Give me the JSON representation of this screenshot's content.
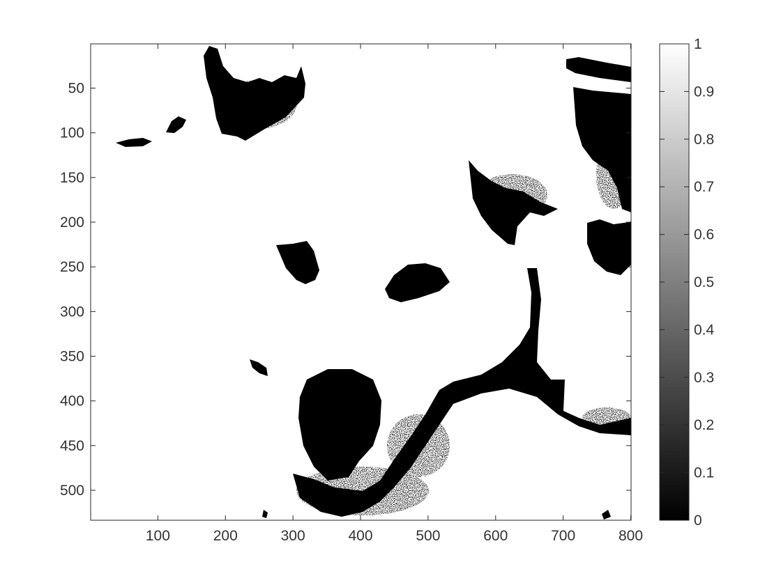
{
  "figure": {
    "background": "#ffffff",
    "axes_color": "#262626",
    "x_ticks": [
      {
        "value": 100,
        "label": "100"
      },
      {
        "value": 200,
        "label": "200"
      },
      {
        "value": 300,
        "label": "300"
      },
      {
        "value": 400,
        "label": "400"
      },
      {
        "value": 500,
        "label": "500"
      },
      {
        "value": 600,
        "label": "600"
      },
      {
        "value": 700,
        "label": "700"
      },
      {
        "value": 800,
        "label": "800"
      }
    ],
    "y_ticks": [
      {
        "value": 50,
        "label": "50"
      },
      {
        "value": 100,
        "label": "100"
      },
      {
        "value": 150,
        "label": "150"
      },
      {
        "value": 200,
        "label": "200"
      },
      {
        "value": 250,
        "label": "250"
      },
      {
        "value": 300,
        "label": "300"
      },
      {
        "value": 350,
        "label": "350"
      },
      {
        "value": 400,
        "label": "400"
      },
      {
        "value": 450,
        "label": "450"
      },
      {
        "value": 500,
        "label": "500"
      }
    ],
    "x_range": [
      0.5,
      800.5
    ],
    "y_range": [
      0.5,
      533.5
    ],
    "image": {
      "content": "binary black-and-white thresholded photo of a white dog's face",
      "foreground": "#ffffff",
      "background": "#000000"
    },
    "colorbar": {
      "colormap": "gray",
      "ticks": [
        {
          "value": 0,
          "label": "0"
        },
        {
          "value": 0.1,
          "label": "0.1"
        },
        {
          "value": 0.2,
          "label": "0.2"
        },
        {
          "value": 0.3,
          "label": "0.3"
        },
        {
          "value": 0.4,
          "label": "0.4"
        },
        {
          "value": 0.5,
          "label": "0.5"
        },
        {
          "value": 0.6,
          "label": "0.6"
        },
        {
          "value": 0.7,
          "label": "0.7"
        },
        {
          "value": 0.8,
          "label": "0.8"
        },
        {
          "value": 0.9,
          "label": "0.9"
        },
        {
          "value": 1,
          "label": "1"
        }
      ],
      "range": [
        0,
        1
      ]
    }
  }
}
